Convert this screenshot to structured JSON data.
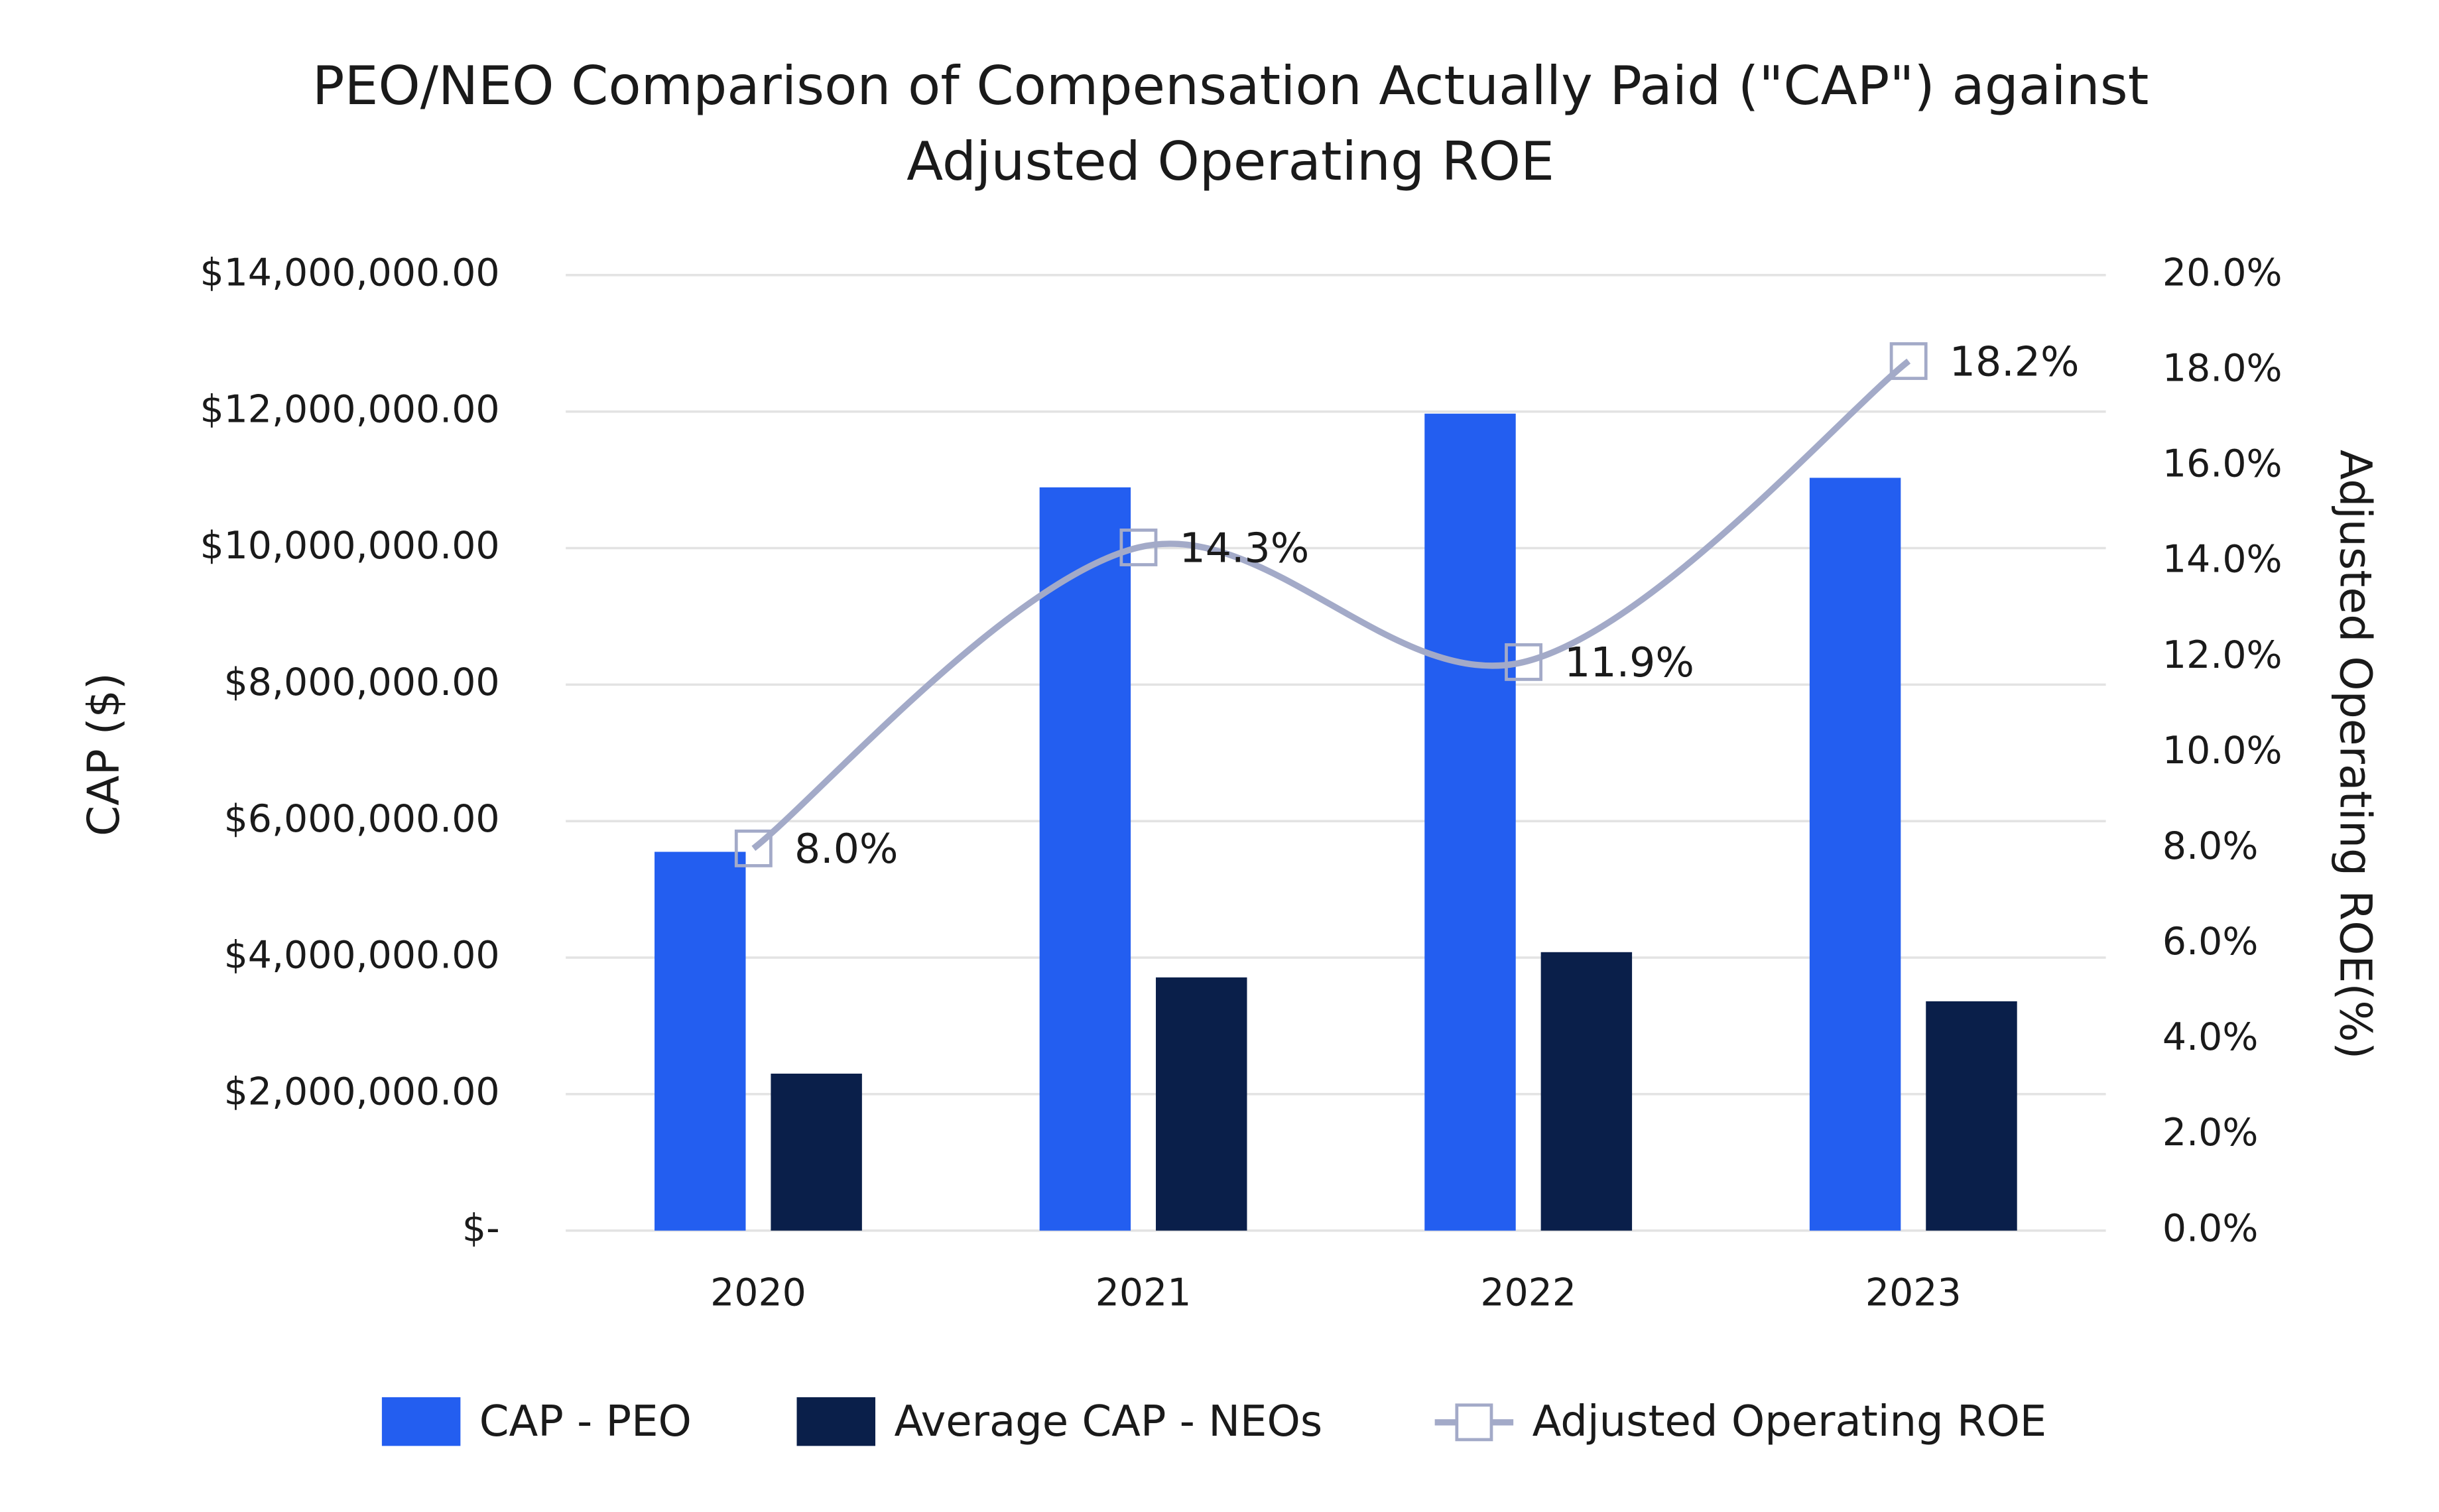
{
  "chart_data": {
    "type": "bar-line",
    "title": [
      "PEO/NEO Comparison of Compensation Actually Paid (\"CAP\") against",
      "Adjusted Operating ROE"
    ],
    "y_label": "CAP ($)",
    "y2_label": "Adjusted Operating ROE(%)",
    "categories": [
      "2020",
      "2021",
      "2022",
      "2023"
    ],
    "ylim": [
      0,
      14000000
    ],
    "yticks": [
      {
        "value": 0,
        "label": "$-"
      },
      {
        "value": 2000000,
        "label": "$2,000,000.00"
      },
      {
        "value": 4000000,
        "label": "$4,000,000.00"
      },
      {
        "value": 6000000,
        "label": "$6,000,000.00"
      },
      {
        "value": 8000000,
        "label": "$8,000,000.00"
      },
      {
        "value": 10000000,
        "label": "$10,000,000.00"
      },
      {
        "value": 12000000,
        "label": "$12,000,000.00"
      },
      {
        "value": 14000000,
        "label": "$14,000,000.00"
      }
    ],
    "y2lim": [
      0,
      20
    ],
    "y2ticks": [
      {
        "value": 0,
        "label": "0.0%"
      },
      {
        "value": 2,
        "label": "2.0%"
      },
      {
        "value": 4,
        "label": "4.0%"
      },
      {
        "value": 6,
        "label": "6.0%"
      },
      {
        "value": 8,
        "label": "8.0%"
      },
      {
        "value": 10,
        "label": "10.0%"
      },
      {
        "value": 12,
        "label": "12.0%"
      },
      {
        "value": 14,
        "label": "14.0%"
      },
      {
        "value": 16,
        "label": "16.0%"
      },
      {
        "value": 18,
        "label": "18.0%"
      },
      {
        "value": 20,
        "label": "20.0%"
      }
    ],
    "grid": true,
    "series": [
      {
        "name": "CAP - PEO",
        "type": "bar",
        "color": "#235ef0",
        "values": [
          5550000,
          10890000,
          11970000,
          11030000
        ]
      },
      {
        "name": "Average CAP - NEOs",
        "type": "bar",
        "color": "#0a1f4a",
        "values": [
          2300000,
          3710000,
          4080000,
          3360000
        ]
      },
      {
        "name": "Adjusted Operating ROE",
        "type": "line",
        "axis": "y2",
        "color": "#a3aac8",
        "values": [
          8.0,
          14.3,
          11.9,
          18.2
        ],
        "value_labels": [
          "8.0%",
          "14.3%",
          "11.9%",
          "18.2%"
        ]
      }
    ]
  }
}
